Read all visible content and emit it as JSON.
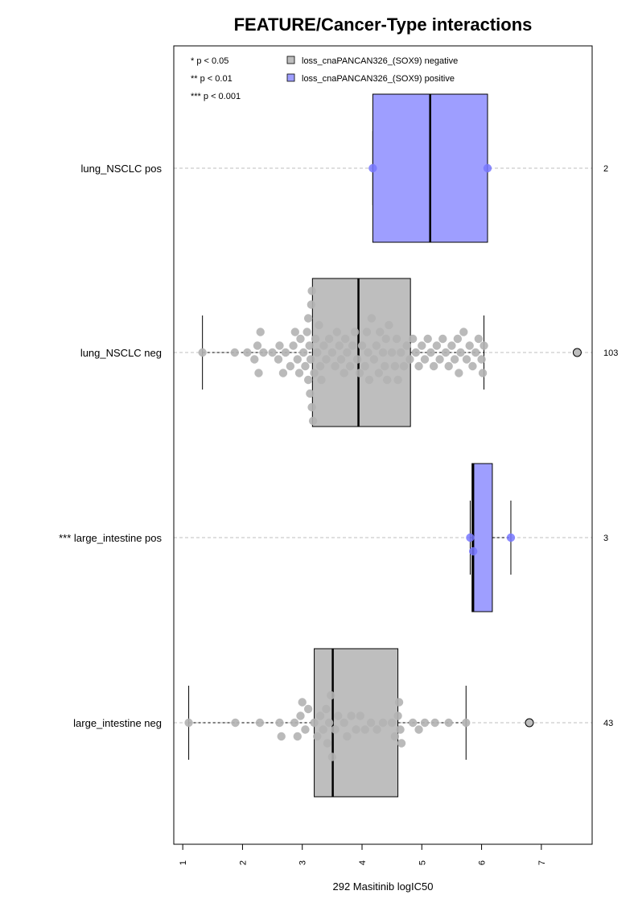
{
  "chart_data": {
    "type": "boxplot",
    "title": "FEATURE/Cancer-Type interactions",
    "xlabel": "292 Masitinib logIC50",
    "xlim": [
      0.85,
      7.85
    ],
    "x_ticks": [
      1,
      2,
      3,
      4,
      5,
      6,
      7
    ],
    "significance_legend": [
      "* p < 0.05",
      "** p < 0.01",
      "*** p < 0.001"
    ],
    "legend": [
      {
        "label": "loss_cnaPANCAN326_(SOX9) negative",
        "color": "#bebebe"
      },
      {
        "label": "loss_cnaPANCAN326_(SOX9) positive",
        "color": "#9e9eff"
      }
    ],
    "colors": {
      "negative_box": "#bebebe",
      "positive_box": "#9e9eff",
      "negative_point": "#b3b3b3",
      "positive_point": "#7777ff"
    },
    "groups": [
      {
        "label": "lung_NSCLC pos",
        "count": "2",
        "kind": "positive",
        "q1": 4.18,
        "median": 5.14,
        "q3": 6.1,
        "whisker_low": 4.18,
        "whisker_high": 6.1,
        "outliers": [],
        "points": [
          4.18,
          6.1
        ]
      },
      {
        "label": "lung_NSCLC neg",
        "count": "103",
        "kind": "negative",
        "q1": 3.17,
        "median": 3.94,
        "q3": 4.81,
        "whisker_low": 1.33,
        "whisker_high": 6.04,
        "outliers": [
          7.6
        ],
        "points": [
          1.33,
          1.87,
          2.08,
          2.2,
          2.25,
          2.27,
          2.3,
          2.35,
          2.5,
          2.6,
          2.62,
          2.68,
          2.72,
          2.8,
          2.85,
          2.88,
          2.92,
          2.95,
          2.97,
          3.02,
          3.05,
          3.08,
          3.1,
          3.1,
          3.12,
          3.13,
          3.14,
          3.15,
          3.16,
          3.16,
          3.18,
          3.2,
          3.22,
          3.25,
          3.28,
          3.3,
          3.32,
          3.36,
          3.4,
          3.45,
          3.5,
          3.55,
          3.58,
          3.62,
          3.65,
          3.7,
          3.72,
          3.75,
          3.8,
          3.84,
          3.88,
          3.92,
          3.96,
          4.0,
          4.05,
          4.08,
          4.1,
          4.12,
          4.16,
          4.2,
          4.24,
          4.28,
          4.3,
          4.35,
          4.38,
          4.4,
          4.42,
          4.45,
          4.5,
          4.55,
          4.58,
          4.6,
          4.65,
          4.7,
          4.75,
          4.8,
          4.85,
          4.9,
          4.95,
          5.0,
          5.05,
          5.1,
          5.15,
          5.2,
          5.25,
          5.3,
          5.35,
          5.4,
          5.45,
          5.5,
          5.55,
          5.6,
          5.62,
          5.65,
          5.7,
          5.75,
          5.8,
          5.85,
          5.9,
          5.95,
          6.0,
          6.02,
          6.04
        ]
      },
      {
        "label": "*** large_intestine pos",
        "count": "3",
        "kind": "positive",
        "q1": 5.84,
        "median": 5.86,
        "q3": 6.18,
        "whisker_low": 5.81,
        "whisker_high": 6.49,
        "outliers": [],
        "points": [
          5.81,
          5.86,
          6.49
        ]
      },
      {
        "label": "large_intestine neg",
        "count": "43",
        "kind": "negative",
        "q1": 3.2,
        "median": 3.51,
        "q3": 4.6,
        "whisker_low": 1.1,
        "whisker_high": 5.74,
        "outliers": [
          6.8
        ],
        "points": [
          1.1,
          1.88,
          2.29,
          2.62,
          2.65,
          2.87,
          2.92,
          2.97,
          3.0,
          3.05,
          3.1,
          3.2,
          3.25,
          3.3,
          3.35,
          3.4,
          3.42,
          3.45,
          3.48,
          3.5,
          3.55,
          3.6,
          3.7,
          3.75,
          3.82,
          3.9,
          3.97,
          4.05,
          4.15,
          4.25,
          4.35,
          4.5,
          4.55,
          4.6,
          4.62,
          4.64,
          4.66,
          4.85,
          4.95,
          5.05,
          5.22,
          5.45,
          5.74
        ]
      }
    ]
  }
}
